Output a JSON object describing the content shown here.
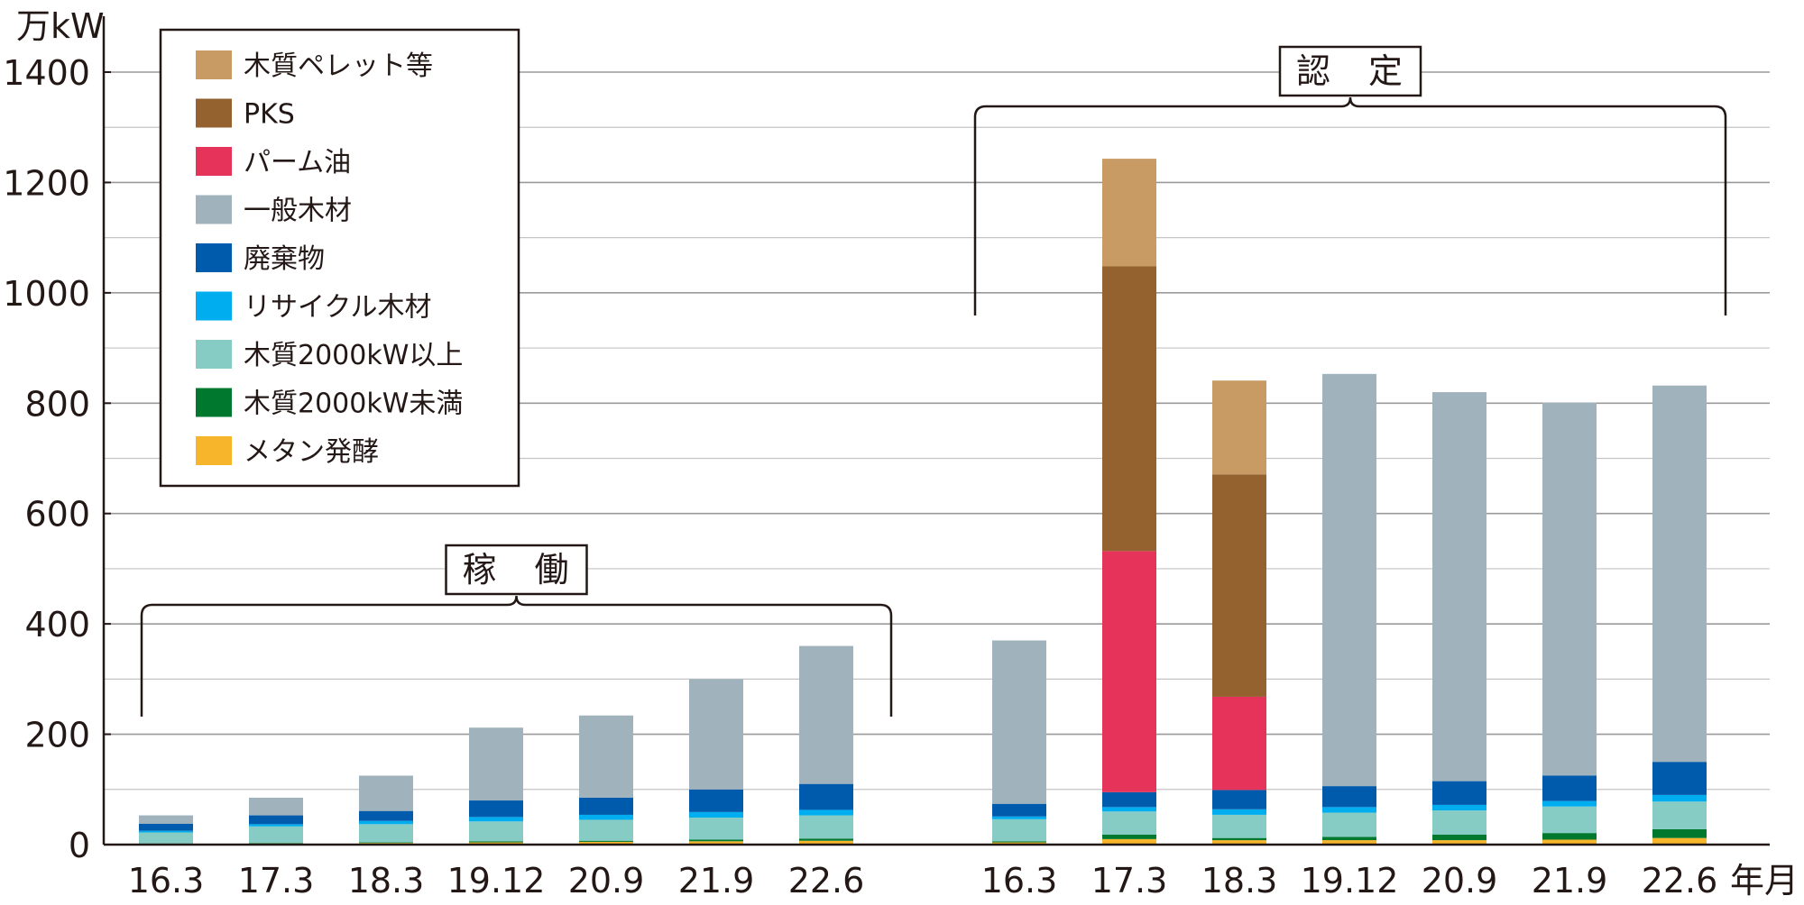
{
  "chart_data": {
    "type": "bar",
    "stacked": true,
    "ylabel": "万kW",
    "xlabel": "年月",
    "ylim": [
      0,
      1400
    ],
    "yticks": [
      0,
      200,
      400,
      600,
      800,
      1000,
      1200,
      1400
    ],
    "grid": true,
    "legend_position": "top-left",
    "groups": [
      {
        "label": "稼　働",
        "categories": [
          "16.3",
          "17.3",
          "18.3",
          "19.12",
          "20.9",
          "21.9",
          "22.6"
        ]
      },
      {
        "label": "認　定",
        "categories": [
          "16.3",
          "17.3",
          "18.3",
          "19.12",
          "20.9",
          "21.9",
          "22.6"
        ]
      }
    ],
    "categories": [
      "16.3",
      "17.3",
      "18.3",
      "19.12",
      "20.9",
      "21.9",
      "22.6",
      "16.3",
      "17.3",
      "18.3",
      "19.12",
      "20.9",
      "21.9",
      "22.6"
    ],
    "series": [
      {
        "name": "メタン発酵",
        "color": "#F7B52C",
        "values": [
          1,
          2,
          3,
          4,
          5,
          6,
          7,
          4,
          10,
          8,
          8,
          8,
          9,
          12
        ]
      },
      {
        "name": "木質2000kW未満",
        "color": "#00792F",
        "values": [
          1,
          1,
          1,
          2,
          2,
          3,
          4,
          2,
          8,
          4,
          6,
          10,
          12,
          16
        ]
      },
      {
        "name": "木質2000kW以上",
        "color": "#86CCC5",
        "values": [
          20,
          30,
          33,
          36,
          38,
          40,
          42,
          40,
          42,
          42,
          44,
          44,
          48,
          50
        ]
      },
      {
        "name": "リサイクル木材",
        "color": "#00AEEF",
        "values": [
          3,
          4,
          6,
          8,
          9,
          10,
          10,
          5,
          8,
          10,
          10,
          10,
          10,
          12
        ]
      },
      {
        "name": "廃棄物",
        "color": "#005BAC",
        "values": [
          13,
          16,
          18,
          30,
          31,
          41,
          47,
          23,
          27,
          35,
          38,
          43,
          46,
          60
        ]
      },
      {
        "name": "一般木材",
        "color": "#A0B3BD",
        "values": [
          15,
          32,
          64,
          132,
          149,
          200,
          250,
          296,
          0,
          0,
          747,
          705,
          676,
          682
        ]
      },
      {
        "name": "パーム油",
        "color": "#E5335A",
        "values": [
          0,
          0,
          0,
          0,
          0,
          0,
          0,
          0,
          437,
          169,
          0,
          0,
          0,
          0
        ]
      },
      {
        "name": "PKS",
        "color": "#93622F",
        "values": [
          0,
          0,
          0,
          0,
          0,
          0,
          0,
          0,
          516,
          403,
          0,
          0,
          0,
          0
        ]
      },
      {
        "name": "木質ペレット等",
        "color": "#C79B63",
        "values": [
          0,
          0,
          0,
          0,
          0,
          0,
          0,
          0,
          195,
          170,
          0,
          0,
          0,
          0
        ]
      }
    ],
    "legend_order": [
      "木質ペレット等",
      "PKS",
      "パーム油",
      "一般木材",
      "廃棄物",
      "リサイクル木材",
      "木質2000kW以上",
      "木質2000kW未満",
      "メタン発酵"
    ]
  }
}
